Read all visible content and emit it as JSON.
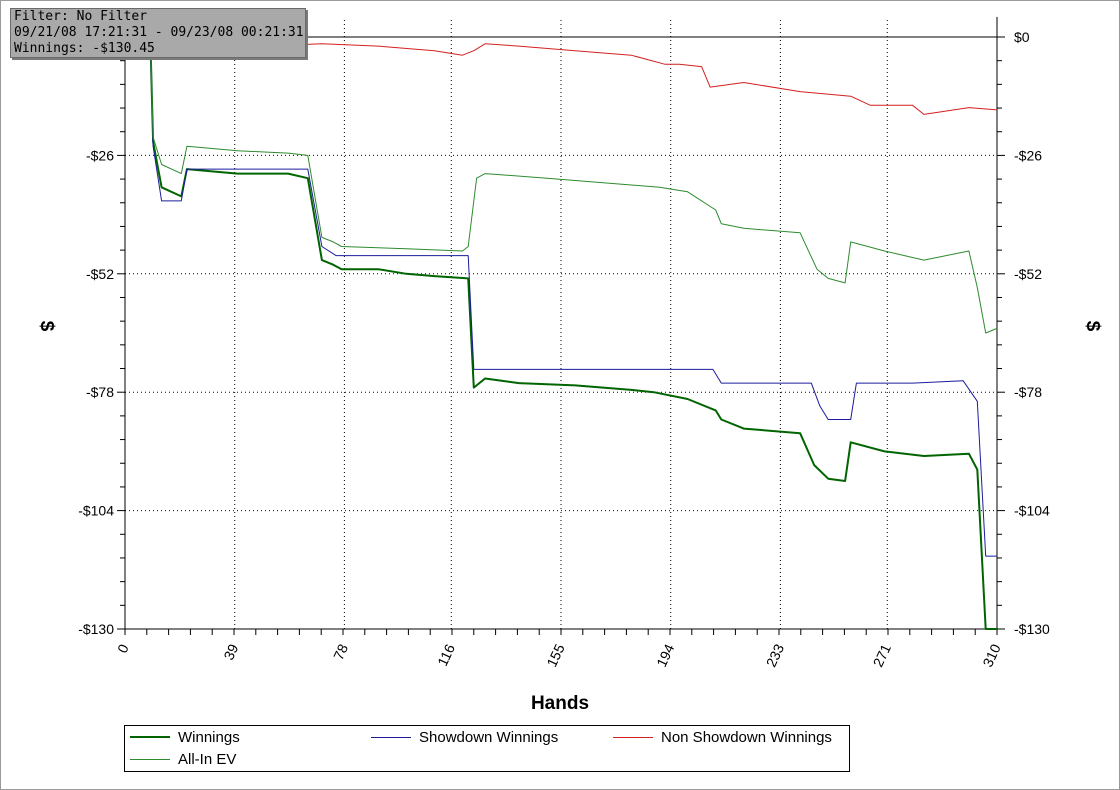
{
  "info_box": {
    "filter": "Filter: No Filter",
    "date_range": "09/21/08 17:21:31 - 09/23/08 00:21:31",
    "winnings": "Winnings: -$130.45"
  },
  "colors": {
    "winnings": "#006400",
    "showdown": "#1c1c9c",
    "non_showdown": "#d42020",
    "allin_ev": "#2e8b2e",
    "zero_line": "#000000",
    "grid": "#000000"
  },
  "chart_data": {
    "type": "line",
    "xlabel": "Hands",
    "ylabel_left": "$",
    "ylabel_right": "$",
    "xlim": [
      0,
      310
    ],
    "ylim": [
      -130,
      0
    ],
    "x_ticks": [
      "0",
      "39",
      "78",
      "116",
      "155",
      "194",
      "233",
      "271",
      "310"
    ],
    "y_ticks": [
      {
        "value": 0,
        "label": "$0"
      },
      {
        "value": -26,
        "label": "-$26"
      },
      {
        "value": -52,
        "label": "-$52"
      },
      {
        "value": -78,
        "label": "-$78"
      },
      {
        "value": -104,
        "label": "-$104"
      },
      {
        "value": -130,
        "label": "-$130"
      }
    ],
    "grid": true,
    "legend_position": "bottom",
    "series": [
      {
        "key": "winnings",
        "name": "Winnings",
        "points": [
          [
            0,
            0
          ],
          [
            9,
            0
          ],
          [
            10,
            -23
          ],
          [
            13,
            -33
          ],
          [
            20,
            -35
          ],
          [
            22,
            -29
          ],
          [
            40,
            -30
          ],
          [
            58,
            -30
          ],
          [
            65,
            -31
          ],
          [
            70,
            -49
          ],
          [
            74,
            -50
          ],
          [
            77,
            -51
          ],
          [
            90,
            -51
          ],
          [
            100,
            -52
          ],
          [
            110,
            -52.5
          ],
          [
            122,
            -53
          ],
          [
            124,
            -77
          ],
          [
            128,
            -75
          ],
          [
            140,
            -76
          ],
          [
            160,
            -76.5
          ],
          [
            180,
            -77.5
          ],
          [
            188,
            -78
          ],
          [
            200,
            -79.5
          ],
          [
            210,
            -82
          ],
          [
            212,
            -84
          ],
          [
            220,
            -86
          ],
          [
            240,
            -87
          ],
          [
            245,
            -94
          ],
          [
            250,
            -97
          ],
          [
            256,
            -97.5
          ],
          [
            258,
            -89
          ],
          [
            270,
            -91
          ],
          [
            284,
            -92
          ],
          [
            300,
            -91.5
          ],
          [
            303,
            -95
          ],
          [
            306,
            -130
          ],
          [
            310,
            -130
          ]
        ]
      },
      {
        "key": "showdown",
        "name": "Showdown Winnings",
        "points": [
          [
            0,
            0
          ],
          [
            9,
            0
          ],
          [
            10,
            -24
          ],
          [
            13,
            -36
          ],
          [
            20,
            -36
          ],
          [
            22,
            -29
          ],
          [
            40,
            -29
          ],
          [
            58,
            -29
          ],
          [
            65,
            -29
          ],
          [
            70,
            -46
          ],
          [
            75,
            -48
          ],
          [
            122,
            -48
          ],
          [
            124,
            -73
          ],
          [
            128,
            -73
          ],
          [
            170,
            -73
          ],
          [
            209,
            -73
          ],
          [
            212,
            -76
          ],
          [
            220,
            -76
          ],
          [
            244,
            -76
          ],
          [
            247,
            -81
          ],
          [
            250,
            -84
          ],
          [
            258,
            -84
          ],
          [
            260,
            -76
          ],
          [
            280,
            -76
          ],
          [
            298,
            -75.5
          ],
          [
            303,
            -80
          ],
          [
            306,
            -114
          ],
          [
            310,
            -114
          ]
        ]
      },
      {
        "key": "non_showdown",
        "name": "Non Showdown Winnings",
        "points": [
          [
            0,
            0
          ],
          [
            10,
            -1
          ],
          [
            30,
            -1.5
          ],
          [
            50,
            -2
          ],
          [
            70,
            -1.5
          ],
          [
            90,
            -2
          ],
          [
            110,
            -3
          ],
          [
            120,
            -4
          ],
          [
            124,
            -3
          ],
          [
            128,
            -1.5
          ],
          [
            140,
            -2
          ],
          [
            160,
            -3
          ],
          [
            180,
            -4
          ],
          [
            192,
            -6
          ],
          [
            197,
            -6
          ],
          [
            205,
            -6.5
          ],
          [
            208,
            -11
          ],
          [
            220,
            -10
          ],
          [
            240,
            -12
          ],
          [
            258,
            -13
          ],
          [
            265,
            -15
          ],
          [
            280,
            -15
          ],
          [
            284,
            -17
          ],
          [
            300,
            -15.5
          ],
          [
            310,
            -16
          ]
        ]
      },
      {
        "key": "allin_ev",
        "name": "All-In EV",
        "points": [
          [
            0,
            0
          ],
          [
            9,
            0
          ],
          [
            10,
            -22
          ],
          [
            13,
            -28
          ],
          [
            20,
            -30
          ],
          [
            22,
            -24
          ],
          [
            40,
            -25
          ],
          [
            58,
            -25.5
          ],
          [
            65,
            -26
          ],
          [
            70,
            -44
          ],
          [
            74,
            -45
          ],
          [
            77,
            -46
          ],
          [
            100,
            -46.5
          ],
          [
            120,
            -47
          ],
          [
            122,
            -46
          ],
          [
            125,
            -31
          ],
          [
            128,
            -30
          ],
          [
            150,
            -31
          ],
          [
            170,
            -32
          ],
          [
            190,
            -33
          ],
          [
            200,
            -34
          ],
          [
            210,
            -38
          ],
          [
            212,
            -41
          ],
          [
            220,
            -42
          ],
          [
            240,
            -43
          ],
          [
            246,
            -51
          ],
          [
            250,
            -53
          ],
          [
            256,
            -54
          ],
          [
            258,
            -45
          ],
          [
            270,
            -47
          ],
          [
            284,
            -49
          ],
          [
            300,
            -47
          ],
          [
            303,
            -55
          ],
          [
            306,
            -65
          ],
          [
            310,
            -64
          ]
        ]
      }
    ]
  }
}
